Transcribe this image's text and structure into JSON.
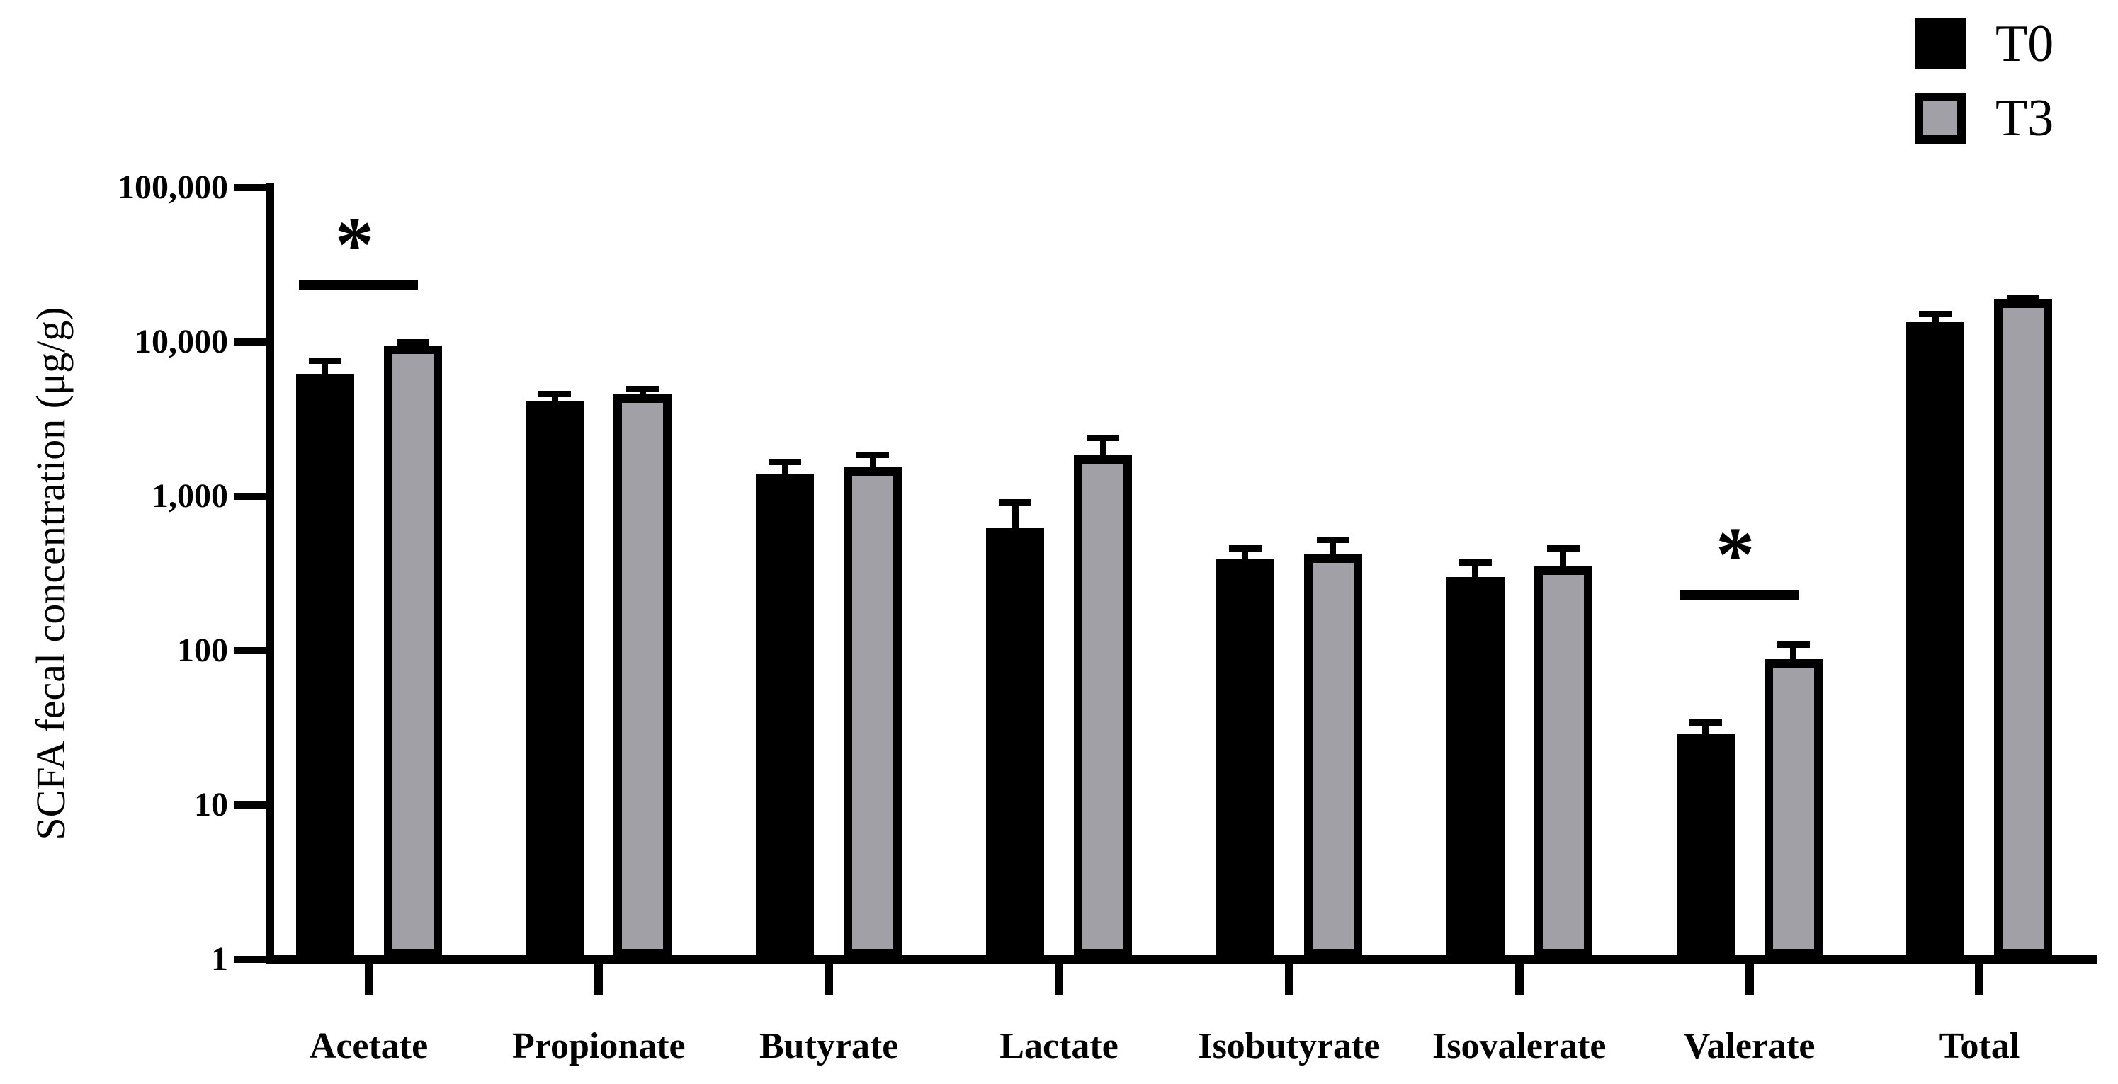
{
  "figure": {
    "background": "#ffffff",
    "series_colors": {
      "T0": "#000000",
      "T3": "#a0a0a6"
    }
  },
  "chart_data": {
    "type": "bar",
    "y_scale": "log10",
    "title": "",
    "xlabel": "",
    "ylabel": "SCFA fecal concentration (μg/g)",
    "ylim": [
      1,
      100000
    ],
    "grid": false,
    "legend_position": "top-right",
    "categories": [
      "Acetate",
      "Propionate",
      "Butyrate",
      "Lactate",
      "Isobutyrate",
      "Isovalerate",
      "Valerate",
      "Total"
    ],
    "y_ticks": [
      {
        "value": 100000,
        "label": "100,000"
      },
      {
        "value": 10000,
        "label": "10,000"
      },
      {
        "value": 1000,
        "label": "1,000"
      },
      {
        "value": 100,
        "label": "100"
      },
      {
        "value": 10,
        "label": "10"
      },
      {
        "value": 1,
        "label": "1"
      }
    ],
    "series": [
      {
        "name": "T0",
        "color": "#000000",
        "values": [
          6200,
          4100,
          1400,
          620,
          390,
          300,
          29,
          13400
        ],
        "error_top": [
          7900,
          4800,
          1750,
          960,
          480,
          390,
          36,
          16000
        ]
      },
      {
        "name": "T3",
        "color": "#a0a0a6",
        "values": [
          9500,
          4600,
          1550,
          1850,
          420,
          350,
          88,
          18900
        ],
        "error_top": [
          10400,
          5200,
          1950,
          2500,
          545,
          480,
          115,
          20400
        ]
      }
    ],
    "significance": [
      {
        "category": "Acetate",
        "label": "*",
        "line_value": 23500
      },
      {
        "category": "Valerate",
        "label": "*",
        "line_value": 230
      }
    ]
  }
}
